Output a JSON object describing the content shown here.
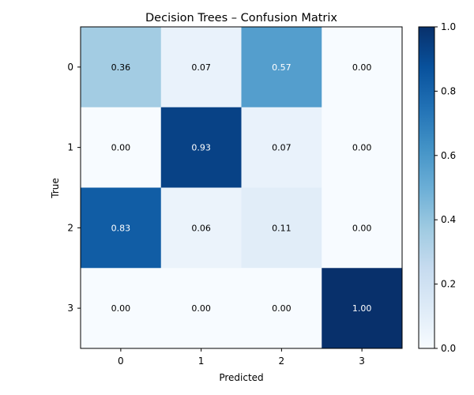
{
  "chart_data": {
    "type": "heatmap",
    "title": "Decision Trees – Confusion Matrix",
    "xlabel": "Predicted",
    "ylabel": "True",
    "x_categories": [
      "0",
      "1",
      "2",
      "3"
    ],
    "y_categories": [
      "0",
      "1",
      "2",
      "3"
    ],
    "values": [
      [
        0.36,
        0.07,
        0.57,
        0.0
      ],
      [
        0.0,
        0.93,
        0.07,
        0.0
      ],
      [
        0.83,
        0.06,
        0.11,
        0.0
      ],
      [
        0.0,
        0.0,
        0.0,
        1.0
      ]
    ],
    "value_labels": [
      [
        "0.36",
        "0.07",
        "0.57",
        "0.00"
      ],
      [
        "0.00",
        "0.93",
        "0.07",
        "0.00"
      ],
      [
        "0.83",
        "0.06",
        "0.11",
        "0.00"
      ],
      [
        "0.00",
        "0.00",
        "0.00",
        "1.00"
      ]
    ],
    "colormap": "Blues",
    "color_range": [
      0.0,
      1.0
    ],
    "colorbar_ticks": [
      "0.0",
      "0.2",
      "0.4",
      "0.6",
      "0.8",
      "1.0"
    ],
    "grid": false
  }
}
